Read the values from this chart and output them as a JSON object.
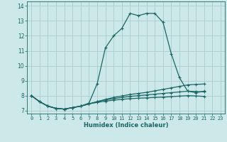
{
  "xlabel": "Humidex (Indice chaleur)",
  "bg_color": "#cce8e8",
  "grid_color": "#aacccc",
  "line_color": "#1a6666",
  "xlim": [
    -0.5,
    23.5
  ],
  "ylim": [
    6.8,
    14.3
  ],
  "xticks": [
    0,
    1,
    2,
    3,
    4,
    5,
    6,
    7,
    8,
    9,
    10,
    11,
    12,
    13,
    14,
    15,
    16,
    17,
    18,
    19,
    20,
    21,
    22,
    23
  ],
  "yticks": [
    7,
    8,
    9,
    10,
    11,
    12,
    13,
    14
  ],
  "series": [
    [
      8.0,
      7.6,
      7.3,
      7.15,
      7.1,
      7.2,
      7.3,
      7.5,
      8.8,
      11.2,
      12.0,
      12.5,
      13.5,
      13.35,
      13.5,
      13.5,
      12.9,
      10.8,
      9.2,
      8.3,
      8.2,
      8.3,
      null,
      null
    ],
    [
      8.0,
      7.6,
      7.3,
      7.15,
      7.1,
      7.2,
      7.3,
      7.45,
      7.6,
      7.75,
      7.88,
      7.98,
      8.08,
      8.15,
      8.22,
      8.32,
      8.42,
      8.52,
      8.62,
      8.72,
      8.75,
      8.78,
      null,
      null
    ],
    [
      8.0,
      7.6,
      7.3,
      7.15,
      7.1,
      7.2,
      7.3,
      7.45,
      7.6,
      7.72,
      7.8,
      7.88,
      7.95,
      8.0,
      8.05,
      8.1,
      8.15,
      8.2,
      8.25,
      8.3,
      8.28,
      8.25,
      null,
      null
    ],
    [
      8.0,
      7.6,
      7.3,
      7.15,
      7.1,
      7.2,
      7.3,
      7.45,
      7.55,
      7.63,
      7.7,
      7.75,
      7.8,
      7.83,
      7.85,
      7.88,
      7.9,
      7.93,
      7.97,
      8.0,
      7.98,
      7.95,
      null,
      null
    ]
  ],
  "marker": "+",
  "marker_size": 2.5,
  "linewidth": 0.9
}
